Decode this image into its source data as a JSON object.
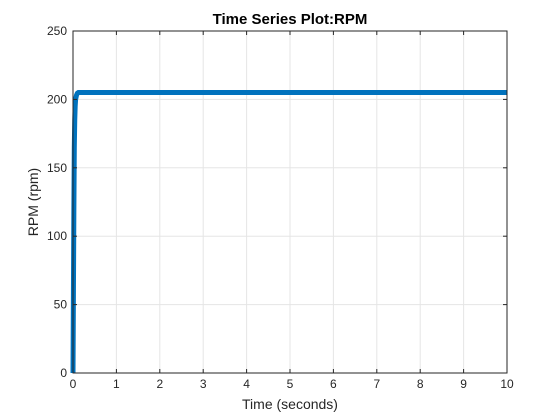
{
  "chart_data": {
    "type": "line",
    "title": "Time Series Plot:RPM",
    "xlabel": "Time (seconds)",
    "ylabel": "RPM (rpm)",
    "xlim": [
      0,
      10
    ],
    "ylim": [
      0,
      250
    ],
    "xticks": [
      0,
      1,
      2,
      3,
      4,
      5,
      6,
      7,
      8,
      9,
      10
    ],
    "yticks": [
      0,
      50,
      100,
      150,
      200,
      250
    ],
    "grid": true,
    "legend": "none",
    "series": [
      {
        "color": "#0072BD",
        "x": [
          0,
          0.01,
          0.02,
          0.03,
          0.04,
          0.05,
          0.06,
          0.08,
          0.1,
          0.12,
          0.15,
          0.2,
          0.3,
          0.5,
          1,
          2,
          3,
          4,
          5,
          6,
          7,
          8,
          9,
          10
        ],
        "y": [
          0,
          60,
          120,
          165,
          185,
          195,
          200,
          203,
          204.5,
          205,
          205,
          205,
          205,
          205,
          205,
          205,
          205,
          205,
          205,
          205,
          205,
          205,
          205,
          205
        ]
      }
    ]
  },
  "colors": {
    "axes": "#262626",
    "grid": "#e5e5e5",
    "background": "#ffffff"
  }
}
